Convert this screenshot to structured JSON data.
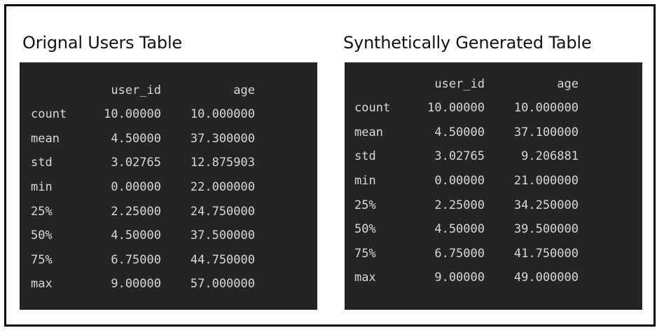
{
  "original_table": {
    "title": "Orignal Users Table",
    "columns": [
      "user_id",
      "age"
    ],
    "rows": [
      {
        "stat": "count",
        "user_id": "10.00000",
        "age": "10.000000"
      },
      {
        "stat": "mean",
        "user_id": "4.50000",
        "age": "37.300000"
      },
      {
        "stat": "std",
        "user_id": "3.02765",
        "age": "12.875903"
      },
      {
        "stat": "min",
        "user_id": "0.00000",
        "age": "22.000000"
      },
      {
        "stat": "25%",
        "user_id": "2.25000",
        "age": "24.750000"
      },
      {
        "stat": "50%",
        "user_id": "4.50000",
        "age": "37.500000"
      },
      {
        "stat": "75%",
        "user_id": "6.75000",
        "age": "44.750000"
      },
      {
        "stat": "max",
        "user_id": "9.00000",
        "age": "57.000000"
      }
    ]
  },
  "synthetic_table": {
    "title": "Synthetically Generated Table",
    "columns": [
      "user_id",
      "age"
    ],
    "rows": [
      {
        "stat": "count",
        "user_id": "10.00000",
        "age": "10.000000"
      },
      {
        "stat": "mean",
        "user_id": "4.50000",
        "age": "37.100000"
      },
      {
        "stat": "std",
        "user_id": "3.02765",
        "age": "9.206881"
      },
      {
        "stat": "min",
        "user_id": "0.00000",
        "age": "21.000000"
      },
      {
        "stat": "25%",
        "user_id": "2.25000",
        "age": "34.250000"
      },
      {
        "stat": "50%",
        "user_id": "4.50000",
        "age": "39.500000"
      },
      {
        "stat": "75%",
        "user_id": "6.75000",
        "age": "41.750000"
      },
      {
        "stat": "max",
        "user_id": "9.00000",
        "age": "49.000000"
      }
    ]
  },
  "colors": {
    "panel_background": "#242424",
    "panel_text": "#d8d8d8",
    "frame_border": "#000000"
  }
}
